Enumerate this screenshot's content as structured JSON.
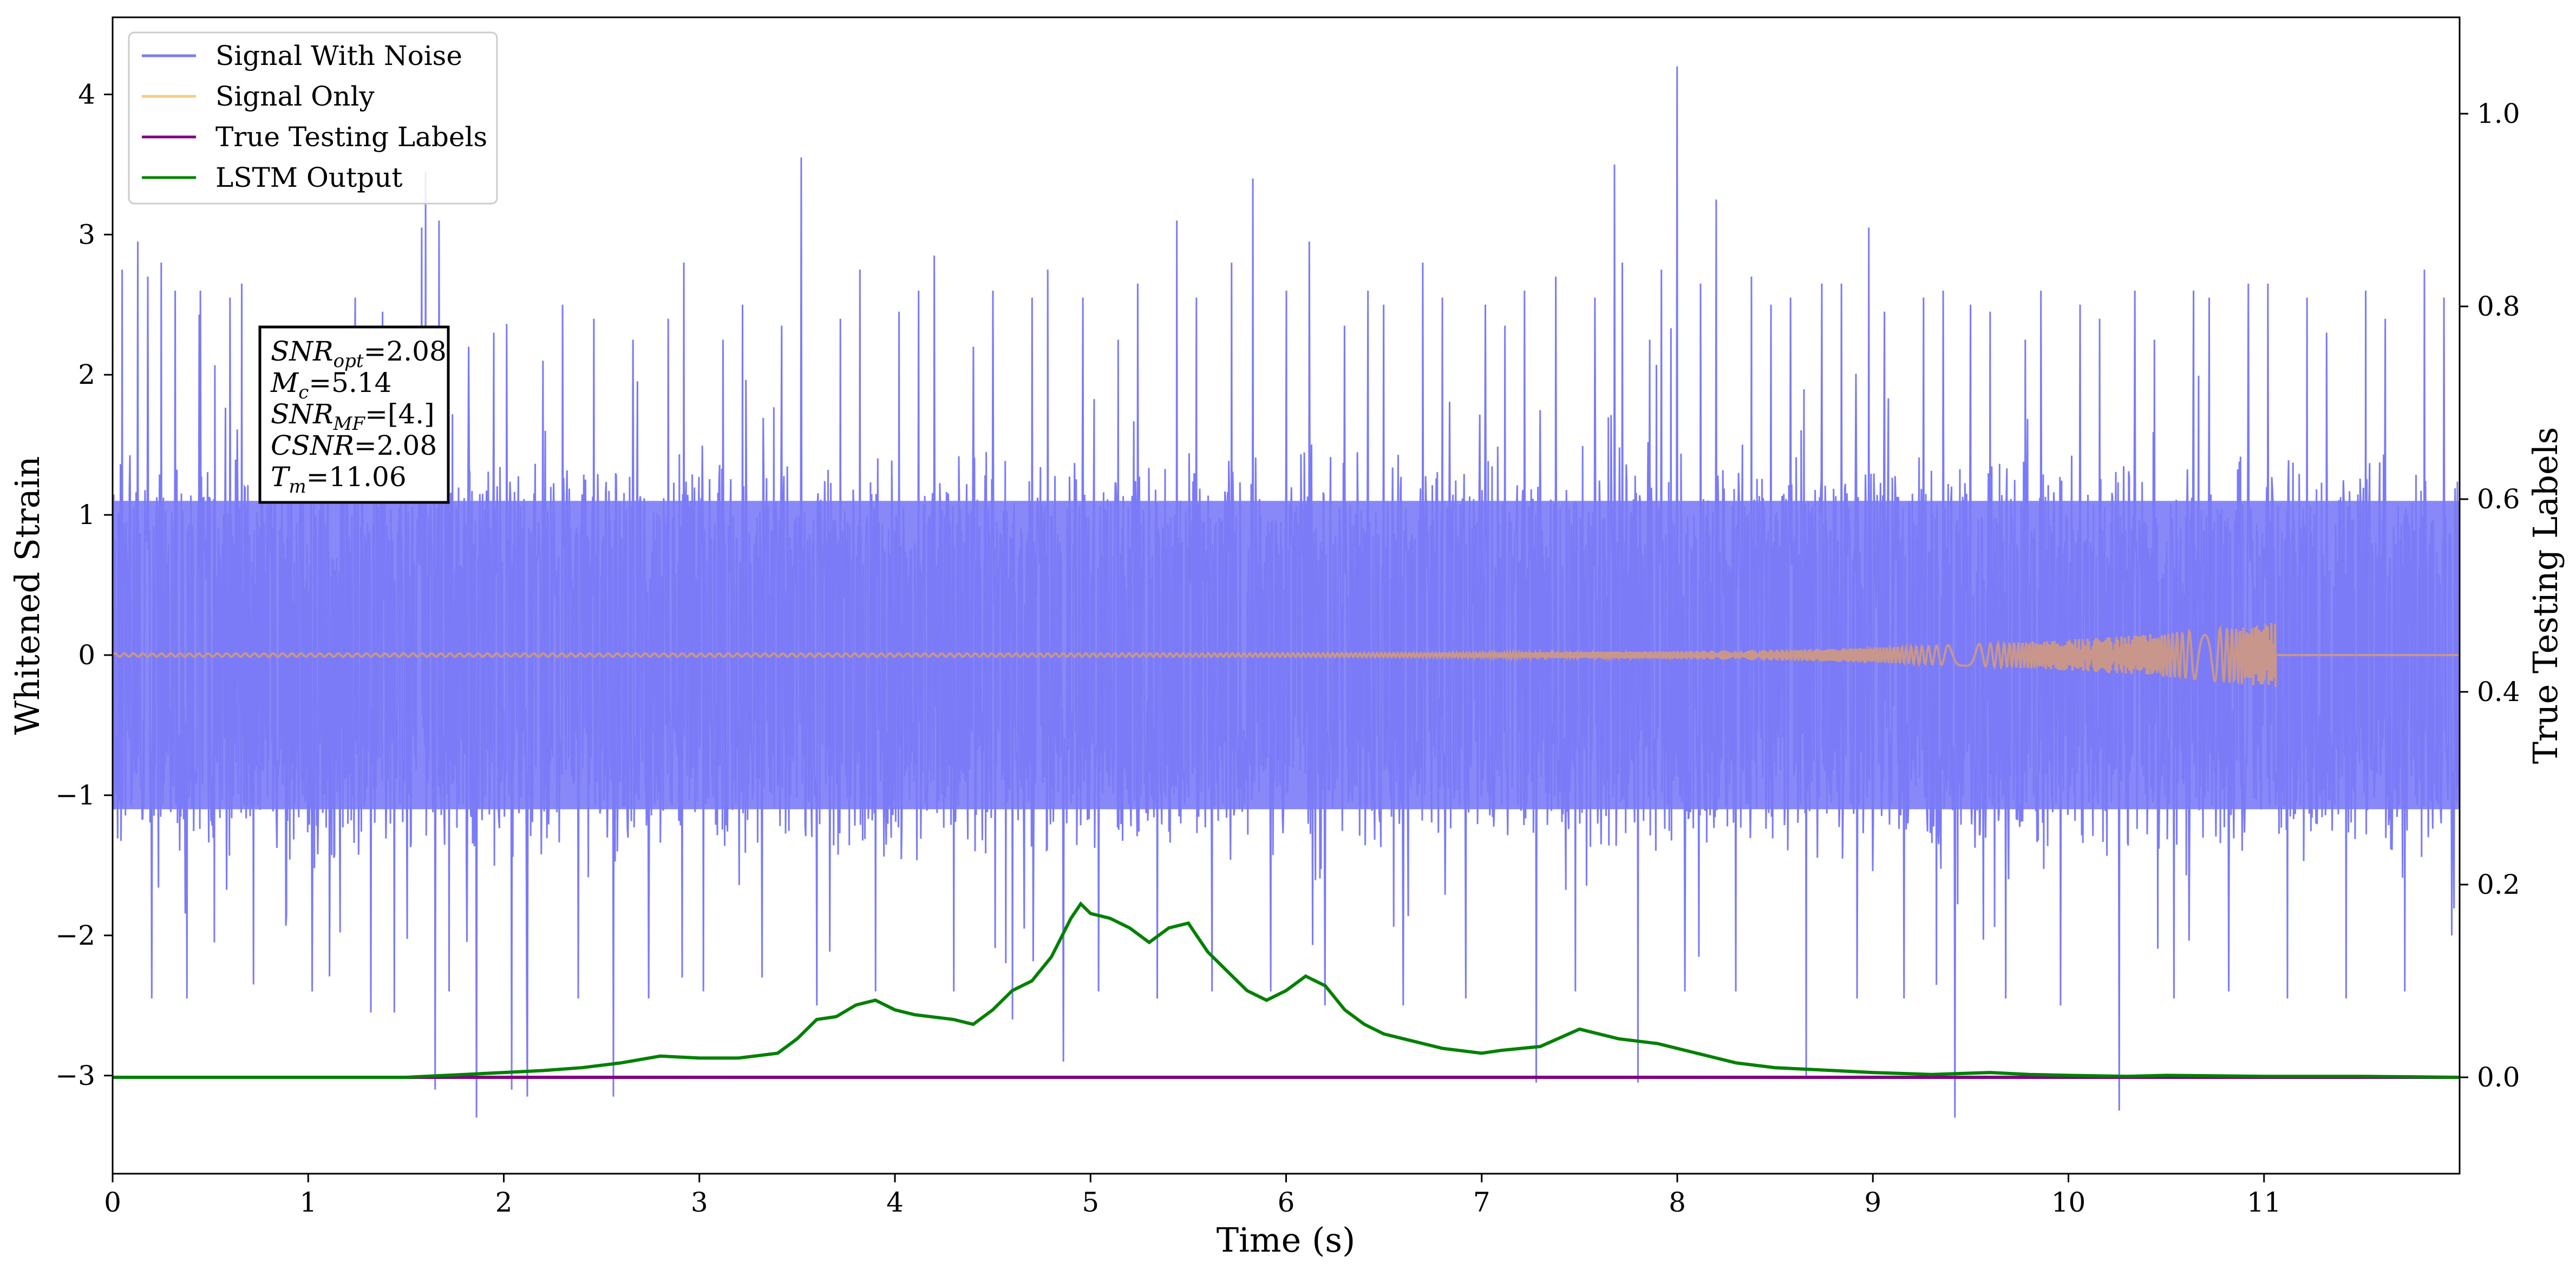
{
  "chart_data": {
    "type": "line",
    "xlabel": "Time (s)",
    "ylabel": "Whitened Strain",
    "ylabel_right": "True Testing Labels",
    "xlim": [
      0,
      12
    ],
    "ylim": [
      -3.7,
      4.55
    ],
    "ylim_right": [
      -0.1,
      1.1
    ],
    "x_ticks": [
      0,
      1,
      2,
      3,
      4,
      5,
      6,
      7,
      8,
      9,
      10,
      11
    ],
    "x_tick_labels": [
      "0",
      "1",
      "2",
      "3",
      "4",
      "5",
      "6",
      "7",
      "8",
      "9",
      "10",
      "11"
    ],
    "y_ticks": [
      -3,
      -2,
      -1,
      0,
      1,
      2,
      3,
      4
    ],
    "y_tick_labels": [
      "−3",
      "−2",
      "−1",
      "0",
      "1",
      "2",
      "3",
      "4"
    ],
    "y_ticks_right": [
      0.0,
      0.2,
      0.4,
      0.6,
      0.8,
      1.0
    ],
    "y_tick_labels_right": [
      "0.0",
      "0.2",
      "0.4",
      "0.6",
      "0.8",
      "1.0"
    ],
    "grid": false,
    "legend_position": "top-left",
    "legend": [
      "Signal With Noise",
      "Signal Only",
      "True Testing Labels",
      "LSTM Output"
    ],
    "series": [
      {
        "name": "Signal With Noise",
        "axis": "left",
        "color": "#7b7bf7",
        "noise_band": [
          -1.1,
          1.1
        ],
        "spikes": [
          [
            0.05,
            2.75
          ],
          [
            0.13,
            2.95
          ],
          [
            0.18,
            2.7
          ],
          [
            0.2,
            -2.45
          ],
          [
            0.25,
            2.8
          ],
          [
            0.32,
            2.6
          ],
          [
            0.38,
            -2.45
          ],
          [
            0.45,
            2.6
          ],
          [
            0.52,
            -2.05
          ],
          [
            0.6,
            2.55
          ],
          [
            0.66,
            2.65
          ],
          [
            0.72,
            -2.35
          ],
          [
            0.8,
            2.0
          ],
          [
            0.96,
            2.3
          ],
          [
            1.02,
            -2.4
          ],
          [
            1.1,
            2.1
          ],
          [
            1.18,
            2.05
          ],
          [
            1.24,
            2.55
          ],
          [
            1.32,
            -2.55
          ],
          [
            1.38,
            2.45
          ],
          [
            1.44,
            -2.55
          ],
          [
            1.5,
            2.2
          ],
          [
            1.58,
            3.05
          ],
          [
            1.6,
            3.45
          ],
          [
            1.65,
            -3.1
          ],
          [
            1.67,
            3.1
          ],
          [
            1.72,
            -2.4
          ],
          [
            1.82,
            2.2
          ],
          [
            1.86,
            -3.3
          ],
          [
            1.95,
            2.3
          ],
          [
            2.04,
            -3.1
          ],
          [
            2.12,
            -3.15
          ],
          [
            2.2,
            2.1
          ],
          [
            2.3,
            2.5
          ],
          [
            2.38,
            -2.45
          ],
          [
            2.46,
            2.4
          ],
          [
            2.56,
            -3.15
          ],
          [
            2.66,
            2.25
          ],
          [
            2.74,
            -2.45
          ],
          [
            2.84,
            2.4
          ],
          [
            2.92,
            2.8
          ],
          [
            3.02,
            -2.4
          ],
          [
            3.12,
            2.25
          ],
          [
            3.22,
            2.5
          ],
          [
            3.32,
            -2.3
          ],
          [
            3.42,
            2.35
          ],
          [
            3.52,
            3.55
          ],
          [
            3.6,
            -2.5
          ],
          [
            3.72,
            2.4
          ],
          [
            3.82,
            2.75
          ],
          [
            3.9,
            -2.4
          ],
          [
            4.02,
            2.45
          ],
          [
            4.12,
            2.6
          ],
          [
            4.2,
            2.85
          ],
          [
            4.3,
            -2.4
          ],
          [
            4.4,
            2.2
          ],
          [
            4.5,
            2.6
          ],
          [
            4.6,
            -2.6
          ],
          [
            4.7,
            2.55
          ],
          [
            4.78,
            2.75
          ],
          [
            4.86,
            -2.9
          ],
          [
            4.96,
            2.55
          ],
          [
            5.04,
            -2.4
          ],
          [
            5.14,
            2.25
          ],
          [
            5.24,
            2.65
          ],
          [
            5.34,
            -2.45
          ],
          [
            5.44,
            3.1
          ],
          [
            5.54,
            2.55
          ],
          [
            5.62,
            -2.4
          ],
          [
            5.72,
            2.8
          ],
          [
            5.83,
            3.4
          ],
          [
            5.92,
            -2.4
          ],
          [
            6.0,
            2.6
          ],
          [
            6.12,
            2.95
          ],
          [
            6.2,
            -2.5
          ],
          [
            6.3,
            2.35
          ],
          [
            6.42,
            2.6
          ],
          [
            6.5,
            2.5
          ],
          [
            6.6,
            -2.5
          ],
          [
            6.7,
            2.8
          ],
          [
            6.8,
            2.55
          ],
          [
            6.92,
            -2.45
          ],
          [
            7.02,
            2.5
          ],
          [
            7.12,
            2.35
          ],
          [
            7.22,
            2.6
          ],
          [
            7.28,
            -3.05
          ],
          [
            7.38,
            2.7
          ],
          [
            7.48,
            -2.4
          ],
          [
            7.58,
            2.55
          ],
          [
            7.68,
            3.5
          ],
          [
            7.72,
            2.8
          ],
          [
            7.8,
            -3.05
          ],
          [
            7.86,
            2.25
          ],
          [
            7.92,
            2.75
          ],
          [
            8.0,
            4.2
          ],
          [
            8.04,
            -2.4
          ],
          [
            8.12,
            2.65
          ],
          [
            8.2,
            3.25
          ],
          [
            8.3,
            -2.4
          ],
          [
            8.38,
            2.7
          ],
          [
            8.48,
            2.5
          ],
          [
            8.58,
            2.55
          ],
          [
            8.66,
            -3.0
          ],
          [
            8.74,
            2.65
          ],
          [
            8.84,
            2.65
          ],
          [
            8.92,
            -2.45
          ],
          [
            8.98,
            3.05
          ],
          [
            9.06,
            2.45
          ],
          [
            9.16,
            -2.45
          ],
          [
            9.26,
            2.55
          ],
          [
            9.36,
            2.6
          ],
          [
            9.42,
            -3.3
          ],
          [
            9.5,
            2.5
          ],
          [
            9.6,
            2.45
          ],
          [
            9.68,
            -2.45
          ],
          [
            9.78,
            2.25
          ],
          [
            9.86,
            2.6
          ],
          [
            9.96,
            -2.5
          ],
          [
            10.06,
            2.5
          ],
          [
            10.16,
            2.4
          ],
          [
            10.26,
            -3.25
          ],
          [
            10.34,
            2.6
          ],
          [
            10.44,
            2.25
          ],
          [
            10.54,
            -2.45
          ],
          [
            10.64,
            2.6
          ],
          [
            10.72,
            2.55
          ],
          [
            10.82,
            -2.4
          ],
          [
            10.92,
            2.65
          ],
          [
            11.02,
            2.65
          ],
          [
            11.12,
            -2.45
          ],
          [
            11.22,
            2.55
          ],
          [
            11.32,
            2.3
          ],
          [
            11.42,
            -2.45
          ],
          [
            11.52,
            2.6
          ],
          [
            11.62,
            2.4
          ],
          [
            11.72,
            -2.4
          ],
          [
            11.82,
            2.75
          ],
          [
            11.92,
            2.55
          ],
          [
            11.96,
            -2.0
          ]
        ]
      },
      {
        "name": "Signal Only",
        "axis": "left",
        "color": "#f5c98a",
        "chirp_end_time": 11.06,
        "chirp_peak_amplitude": 0.22
      },
      {
        "name": "True Testing Labels",
        "axis": "right",
        "color": "#800080",
        "x": [
          0,
          12
        ],
        "y": [
          0.0,
          0.0
        ]
      },
      {
        "name": "LSTM Output",
        "axis": "right",
        "color": "#008000",
        "x": [
          0,
          1.5,
          1.8,
          2.0,
          2.2,
          2.4,
          2.6,
          2.8,
          3.0,
          3.2,
          3.4,
          3.5,
          3.6,
          3.7,
          3.8,
          3.9,
          4.0,
          4.1,
          4.3,
          4.4,
          4.5,
          4.6,
          4.7,
          4.8,
          4.9,
          4.95,
          5.0,
          5.1,
          5.2,
          5.3,
          5.4,
          5.5,
          5.55,
          5.6,
          5.7,
          5.8,
          5.9,
          6.0,
          6.1,
          6.2,
          6.3,
          6.4,
          6.5,
          6.6,
          6.8,
          7.0,
          7.1,
          7.3,
          7.5,
          7.7,
          7.9,
          8.1,
          8.3,
          8.5,
          8.7,
          9.0,
          9.3,
          9.6,
          9.8,
          10.0,
          10.3,
          10.5,
          11.0,
          11.5,
          12.0
        ],
        "y": [
          0.0,
          0.0,
          0.003,
          0.005,
          0.007,
          0.01,
          0.015,
          0.022,
          0.02,
          0.02,
          0.025,
          0.04,
          0.06,
          0.063,
          0.075,
          0.08,
          0.07,
          0.065,
          0.06,
          0.055,
          0.07,
          0.09,
          0.1,
          0.125,
          0.165,
          0.18,
          0.17,
          0.165,
          0.155,
          0.14,
          0.155,
          0.16,
          0.145,
          0.13,
          0.11,
          0.09,
          0.08,
          0.09,
          0.105,
          0.095,
          0.07,
          0.055,
          0.045,
          0.04,
          0.03,
          0.025,
          0.028,
          0.032,
          0.05,
          0.04,
          0.035,
          0.025,
          0.015,
          0.01,
          0.008,
          0.005,
          0.003,
          0.005,
          0.003,
          0.002,
          0.001,
          0.002,
          0.001,
          0.001,
          0.0
        ]
      }
    ],
    "annotation": {
      "lines": [
        {
          "sym": "SNR",
          "sub": "opt",
          "val": "=2.08"
        },
        {
          "sym": "M",
          "sub": "c",
          "val": "=5.14"
        },
        {
          "sym": "SNR",
          "sub": "MF",
          "val": "=[4.]"
        },
        {
          "sym": "CSNR",
          "sub": "",
          "val": "=2.08"
        },
        {
          "sym": "T",
          "sub": "m",
          "val": "=11.06"
        }
      ]
    }
  }
}
